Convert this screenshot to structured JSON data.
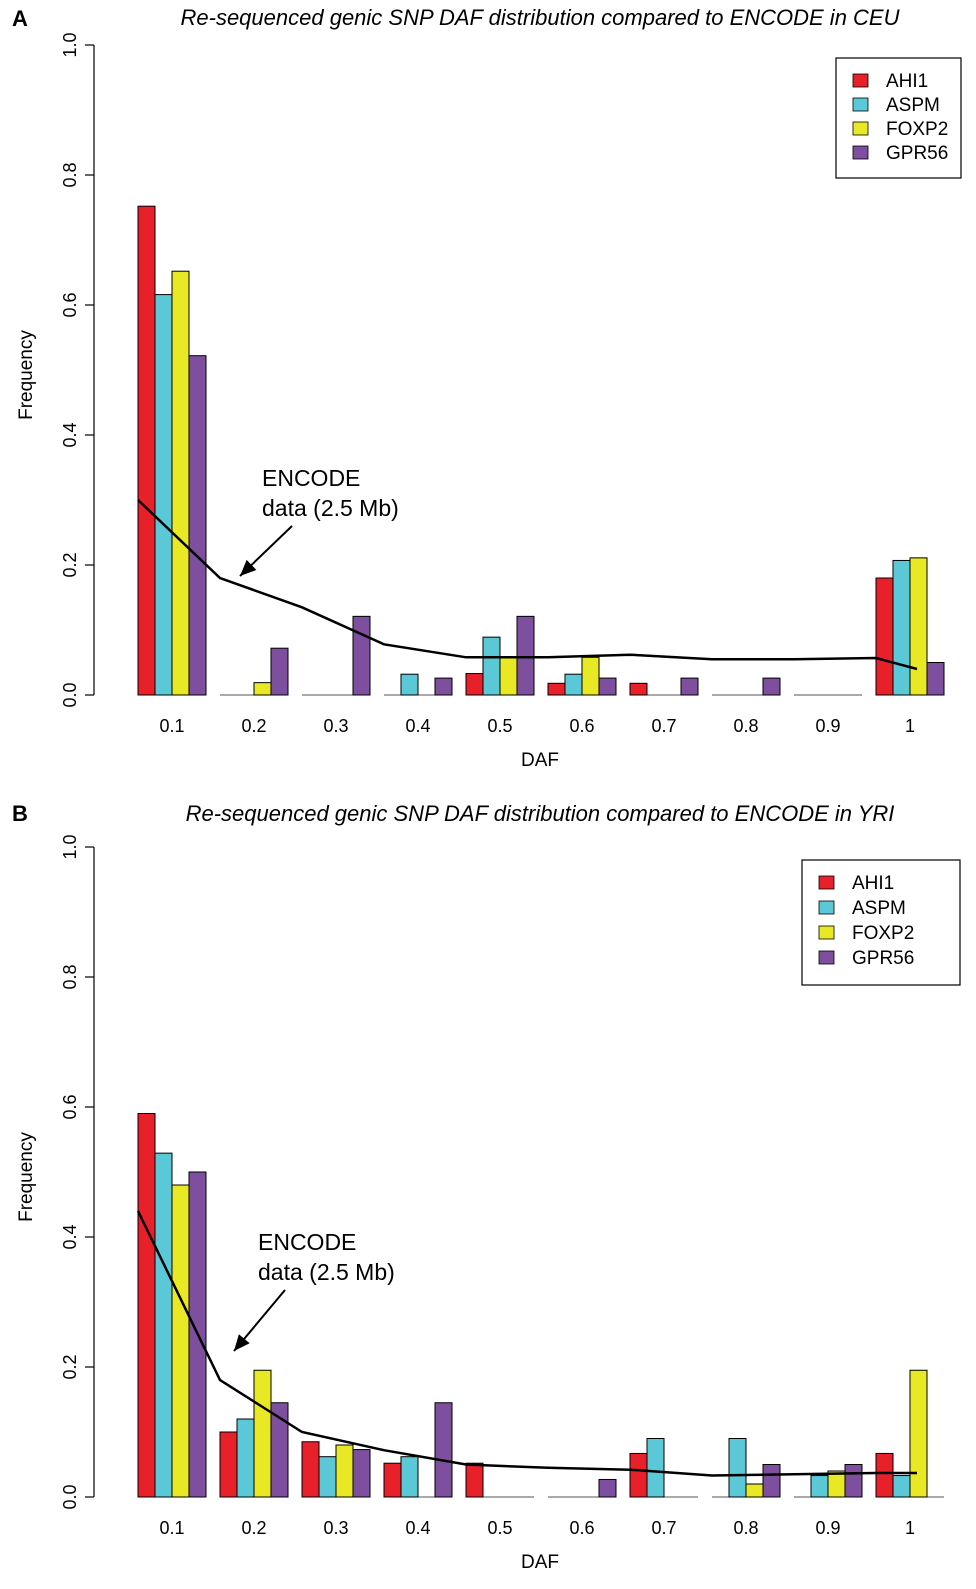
{
  "panels": [
    {
      "letter": "A",
      "chart_data": {
        "type": "bar",
        "title": "Re-sequenced genic SNP DAF distribution compared to ENCODE in CEU",
        "xlabel": "DAF",
        "ylabel": "Frequency",
        "ylim": [
          0,
          1.0
        ],
        "yticks": [
          "0.0",
          "0.2",
          "0.4",
          "0.6",
          "0.8",
          "1.0"
        ],
        "categories": [
          "0.1",
          "0.2",
          "0.3",
          "0.4",
          "0.5",
          "0.6",
          "0.7",
          "0.8",
          "0.9",
          "1"
        ],
        "series": [
          {
            "name": "AHI1",
            "color": "#e8202a",
            "values": [
              0.752,
              0,
              0,
              0,
              0.033,
              0.018,
              0.018,
              0,
              0,
              0.18
            ]
          },
          {
            "name": "ASPM",
            "color": "#5bc8d8",
            "values": [
              0.616,
              0,
              0,
              0.032,
              0.089,
              0.032,
              0,
              0,
              0,
              0.207
            ]
          },
          {
            "name": "FOXP2",
            "color": "#e8e824",
            "values": [
              0.652,
              0.019,
              0,
              0,
              0.058,
              0.058,
              0,
              0,
              0,
              0.211
            ]
          },
          {
            "name": "GPR56",
            "color": "#7d4f9e",
            "values": [
              0.522,
              0.072,
              0.121,
              0.026,
              0.121,
              0.026,
              0.026,
              0.026,
              0,
              0.05
            ]
          }
        ],
        "encode_line": {
          "x": [
            0.1,
            0.2,
            0.3,
            0.4,
            0.5,
            0.6,
            0.7,
            0.8,
            0.9,
            1.0,
            1.05
          ],
          "y": [
            0.3,
            0.18,
            0.135,
            0.078,
            0.058,
            0.058,
            0.062,
            0.055,
            0.055,
            0.057,
            0.04
          ]
        },
        "annotation": {
          "line1": "ENCODE",
          "line2": "data (2.5 Mb)"
        },
        "legend_position": "top-right"
      }
    },
    {
      "letter": "B",
      "chart_data": {
        "type": "bar",
        "title": "Re-sequenced genic SNP DAF distribution compared to ENCODE in YRI",
        "xlabel": "DAF",
        "ylabel": "Frequency",
        "ylim": [
          0,
          1.0
        ],
        "yticks": [
          "0.0",
          "0.2",
          "0.4",
          "0.6",
          "0.8",
          "1.0"
        ],
        "categories": [
          "0.1",
          "0.2",
          "0.3",
          "0.4",
          "0.5",
          "0.6",
          "0.7",
          "0.8",
          "0.9",
          "1"
        ],
        "series": [
          {
            "name": "AHI1",
            "color": "#e8202a",
            "values": [
              0.59,
              0.1,
              0.085,
              0.052,
              0.052,
              0,
              0.067,
              0,
              0,
              0.067
            ]
          },
          {
            "name": "ASPM",
            "color": "#5bc8d8",
            "values": [
              0.529,
              0.12,
              0.062,
              0.062,
              0,
              0,
              0.09,
              0.09,
              0.033,
              0.033
            ]
          },
          {
            "name": "FOXP2",
            "color": "#e8e824",
            "values": [
              0.48,
              0.195,
              0.08,
              0,
              0,
              0,
              0,
              0.02,
              0.04,
              0.195
            ]
          },
          {
            "name": "GPR56",
            "color": "#7d4f9e",
            "values": [
              0.5,
              0.145,
              0.073,
              0.145,
              0,
              0.027,
              0,
              0.05,
              0.05,
              0
            ]
          }
        ],
        "encode_line": {
          "x": [
            0.1,
            0.2,
            0.3,
            0.4,
            0.5,
            0.6,
            0.7,
            0.8,
            0.9,
            1.0,
            1.05
          ],
          "y": [
            0.44,
            0.18,
            0.1,
            0.072,
            0.05,
            0.045,
            0.042,
            0.033,
            0.035,
            0.037,
            0.037
          ]
        },
        "annotation": {
          "line1": "ENCODE",
          "line2": "data (2.5 Mb)"
        },
        "legend_position": "top-right"
      }
    }
  ]
}
